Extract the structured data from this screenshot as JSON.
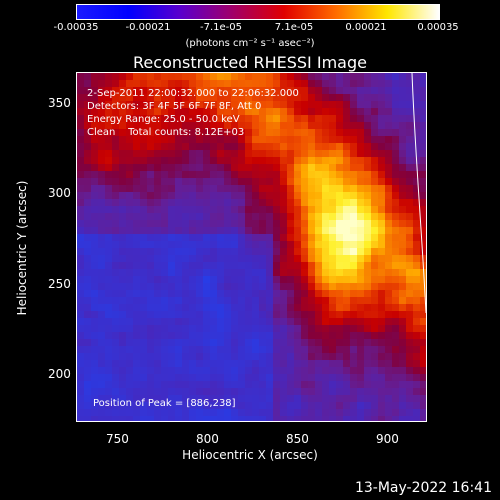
{
  "colorbar": {
    "ticks": [
      "-0.00035",
      "-0.00021",
      "-7.1e-05",
      "7.1e-05",
      "0.00021",
      "0.00035"
    ],
    "units": "(photons cm⁻² s⁻¹ asec⁻²)",
    "colors": [
      "#1a1aff",
      "#0000ff",
      "#5a00cc",
      "#a0006a",
      "#e00000",
      "#ff6a00",
      "#ffe600",
      "#ffffff"
    ]
  },
  "title": "Reconstructed RHESSI Image",
  "overlay": {
    "time_range": "2-Sep-2011 22:00:32.000 to 22:06:32.000",
    "detectors": "Detectors: 3F 4F 5F 6F 7F 8F, Att 0",
    "energy_range": "Energy Range: 25.0 - 50.0 keV",
    "clean_counts": "Clean    Total counts: 8.12E+03",
    "peak": "Position of Peak = [886,238]"
  },
  "axes": {
    "xlabel": "Heliocentric X (arcsec)",
    "ylabel": "Heliocentric Y (arcsec)",
    "xticks": [
      "750",
      "800",
      "850",
      "900"
    ],
    "yticks": [
      "350",
      "300",
      "250",
      "200"
    ]
  },
  "date_stamp": "13-May-2022 16:41"
}
